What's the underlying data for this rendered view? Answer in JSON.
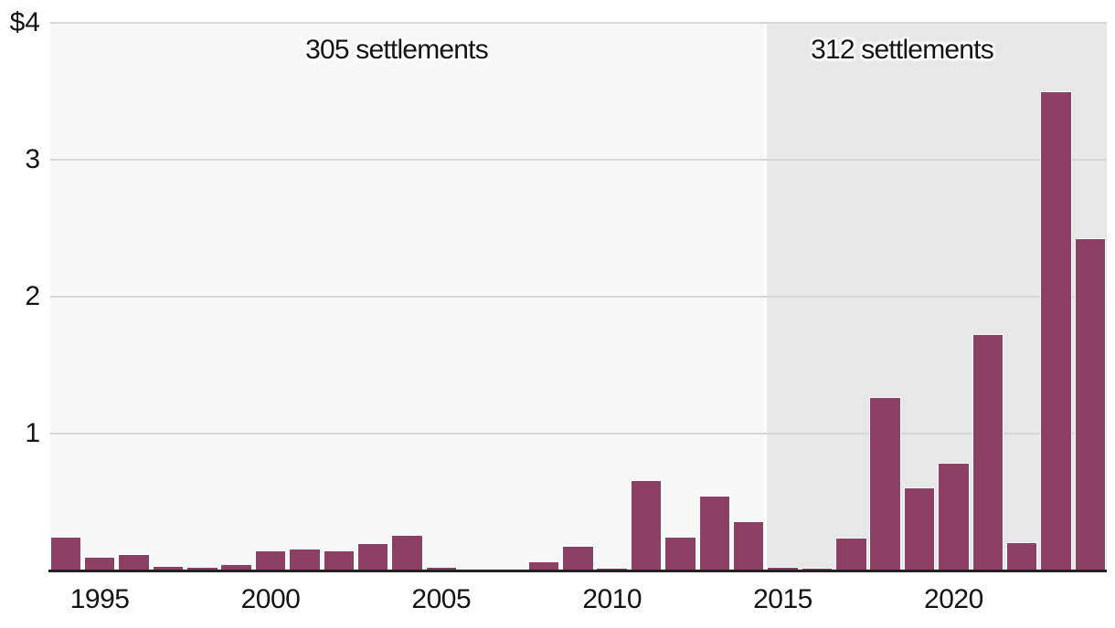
{
  "colors": {
    "bar": "#8C4063",
    "band_pre_2015": "#f7f7f7",
    "band_post_2015": "#e7e7e7",
    "gridline": "#d6d6d6",
    "axis_line": "#222222",
    "text": "#141414",
    "page_background": "#ffffff"
  },
  "chart_data": {
    "type": "bar",
    "title": "",
    "xlabel": "",
    "ylabel": "",
    "ylim": [
      0,
      4
    ],
    "grid": true,
    "legend": "none",
    "bar_color": "#8C4063",
    "x": [
      1994,
      1995,
      1996,
      1997,
      1998,
      1999,
      2000,
      2001,
      2002,
      2003,
      2004,
      2005,
      2006,
      2007,
      2008,
      2009,
      2010,
      2011,
      2012,
      2013,
      2014,
      2015,
      2016,
      2017,
      2018,
      2019,
      2020,
      2021,
      2022,
      2023,
      2024
    ],
    "values": [
      0.25,
      0.1,
      0.12,
      0.035,
      0.03,
      0.05,
      0.15,
      0.16,
      0.15,
      0.2,
      0.26,
      0.03,
      0.0,
      0.005,
      0.07,
      0.18,
      0.02,
      0.66,
      0.25,
      0.55,
      0.36,
      0.03,
      0.02,
      0.24,
      1.27,
      0.61,
      0.79,
      1.73,
      0.21,
      3.5,
      2.43
    ],
    "yticks": [
      {
        "value": 4,
        "label": "$4"
      },
      {
        "value": 3,
        "label": "3"
      },
      {
        "value": 2,
        "label": "2"
      },
      {
        "value": 1,
        "label": "1"
      }
    ],
    "xticks": [
      1995,
      2000,
      2005,
      2010,
      2015,
      2020
    ],
    "regions": [
      {
        "label": "305 settlements",
        "from_year": 1994,
        "to_year": 2014,
        "bg": "#f7f7f7"
      },
      {
        "label": "312 settlements",
        "from_year": 2015,
        "to_year": 2024,
        "bg": "#e7e7e7"
      }
    ]
  }
}
